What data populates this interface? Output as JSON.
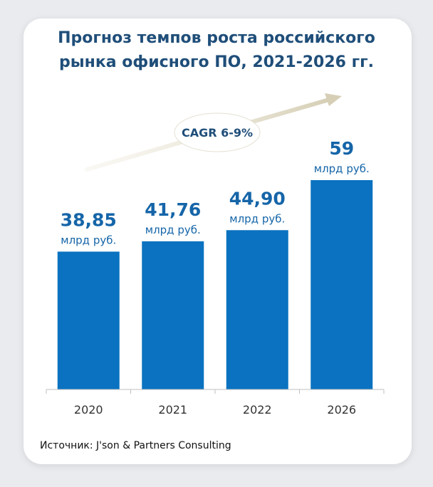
{
  "title_lines": [
    "Прогноз темпов роста российского",
    "рынка офисного ПО, 2021-2026 гг."
  ],
  "source": "Источник: J'son & Partners Consulting",
  "cagr_label": "CAGR 6-9%",
  "colors": {
    "bar": "#0a72c0",
    "value": "#1565a8",
    "title": "#1f4e79",
    "arrow": "#d6cfb6"
  },
  "chart_data": {
    "type": "bar",
    "categories": [
      "2020",
      "2021",
      "2022",
      "2026"
    ],
    "values": [
      38.85,
      41.76,
      44.9,
      59
    ],
    "value_labels": [
      "38,85",
      "41,76",
      "44,90",
      "59"
    ],
    "unit_label": "млрд руб.",
    "title": "Прогноз темпов роста российского рынка офисного ПО, 2021-2026 гг.",
    "xlabel": "",
    "ylabel": "",
    "ylim": [
      0,
      65
    ],
    "grid": false,
    "annotation": "CAGR 6-9%"
  }
}
